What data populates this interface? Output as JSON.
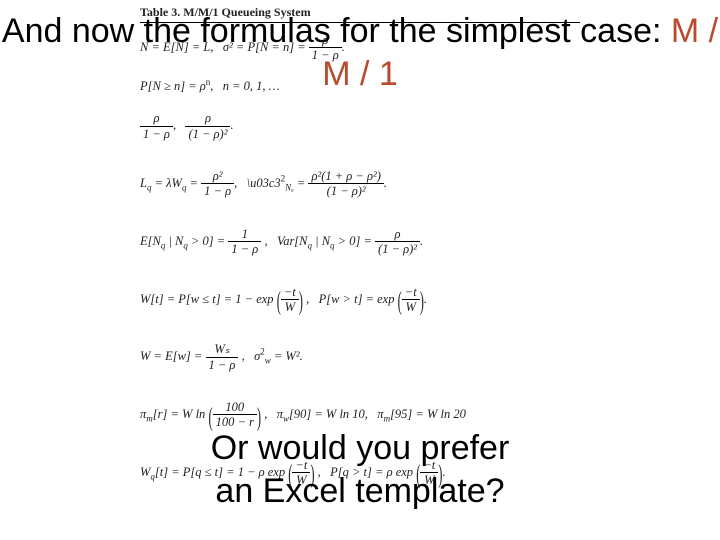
{
  "caption": "Table 3.  M/M/1 Queueing System",
  "heading_top_prefix": "And now the formulas for the simplest case: ",
  "heading_top_accent": "M / M / 1",
  "heading_bottom_line1": "Or would you prefer",
  "heading_bottom_line2": "an Excel template?",
  "row1": "N = E[N] = L,   σ² = P[N = n] = ",
  "row2a": "P[N ≥ n] = ρ",
  "row2b": ",   n = 0, 1, …",
  "rho2_1_mr": "ρ²(1 + ρ − ρ²)",
  "one_mr_sq": "(1 − ρ)²",
  "Lq": "L",
  "lq_eq": " = λW",
  "row5_a": "E[N",
  "row5_b": " | N",
  "row5_c": " > 0] = ",
  "row5_d": ",   Var[N",
  "row5_e": " > 0] = ",
  "exp_pre": "W[t] = P[w ≤ t] = 1 − exp",
  "exp_mid": ",   P[w > t] = exp",
  "W_eq": "W = E[w] = ",
  "sigw": ",   σ",
  "eq_w2": " = W².",
  "pim_a": "π",
  "pim_b": "[r] = W ln",
  "pim_c": ",   π",
  "pim_d": "[90] = W ln 10,   π",
  "pim_e": "[95] = W ln 20",
  "wq_a": "W",
  "wq_b": "[t] = P[q ≤ t] = 1 − ρ exp",
  "wq_c": ",   P[q > t] = ρ exp",
  "frac_100": "100",
  "frac_100_r": "100 − r",
  "frac_rho2": "ρ²",
  "frac_1mr": "1 − ρ",
  "frac_1": "1",
  "frac_rho": "ρ",
  "frac_Ws": "Wₛ",
  "frac_mt": "−t",
  "frac_W": "W",
  "sup_n": "n",
  "sub_q": "q",
  "sub_Nq": "Nₐ",
  "sub_w": "w",
  "sub_m": "m",
  "sup_2": "2"
}
